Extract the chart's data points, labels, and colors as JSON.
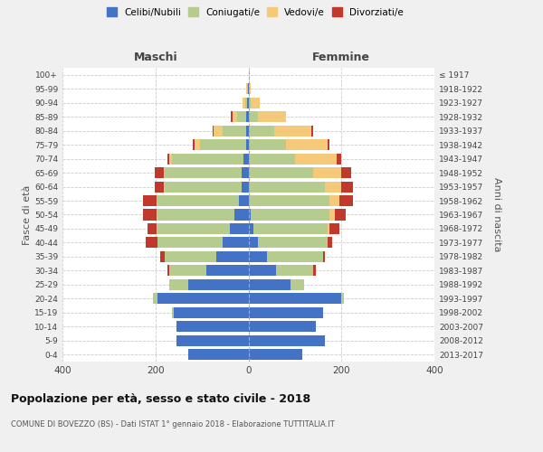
{
  "age_groups": [
    "0-4",
    "5-9",
    "10-14",
    "15-19",
    "20-24",
    "25-29",
    "30-34",
    "35-39",
    "40-44",
    "45-49",
    "50-54",
    "55-59",
    "60-64",
    "65-69",
    "70-74",
    "75-79",
    "80-84",
    "85-89",
    "90-94",
    "95-99",
    "100+"
  ],
  "birth_years": [
    "2013-2017",
    "2008-2012",
    "2003-2007",
    "1998-2002",
    "1993-1997",
    "1988-1992",
    "1983-1987",
    "1978-1982",
    "1973-1977",
    "1968-1972",
    "1963-1967",
    "1958-1962",
    "1953-1957",
    "1948-1952",
    "1943-1947",
    "1938-1942",
    "1933-1937",
    "1928-1932",
    "1923-1927",
    "1918-1922",
    "≤ 1917"
  ],
  "maschi": {
    "celibi": [
      130,
      155,
      155,
      160,
      195,
      130,
      90,
      70,
      55,
      40,
      30,
      20,
      15,
      15,
      10,
      5,
      5,
      5,
      2,
      1,
      0
    ],
    "coniugati": [
      0,
      0,
      0,
      5,
      10,
      40,
      80,
      110,
      140,
      155,
      165,
      175,
      165,
      165,
      155,
      100,
      50,
      20,
      5,
      2,
      0
    ],
    "vedovi": [
      0,
      0,
      0,
      0,
      0,
      0,
      0,
      0,
      0,
      2,
      2,
      2,
      2,
      2,
      5,
      10,
      20,
      10,
      5,
      2,
      0
    ],
    "divorziati": [
      0,
      0,
      0,
      0,
      0,
      0,
      5,
      10,
      25,
      20,
      30,
      30,
      20,
      20,
      5,
      5,
      2,
      2,
      0,
      0,
      0
    ]
  },
  "femmine": {
    "nubili": [
      115,
      165,
      145,
      160,
      200,
      90,
      60,
      40,
      20,
      10,
      5,
      0,
      0,
      0,
      0,
      0,
      0,
      0,
      0,
      0,
      0
    ],
    "coniugate": [
      0,
      0,
      0,
      0,
      5,
      30,
      80,
      120,
      150,
      160,
      170,
      175,
      165,
      140,
      100,
      80,
      55,
      20,
      5,
      0,
      0
    ],
    "vedove": [
      0,
      0,
      0,
      0,
      0,
      0,
      0,
      0,
      0,
      5,
      10,
      20,
      35,
      60,
      90,
      90,
      80,
      60,
      20,
      5,
      0
    ],
    "divorziate": [
      0,
      0,
      0,
      0,
      0,
      0,
      5,
      5,
      10,
      20,
      25,
      30,
      25,
      20,
      10,
      5,
      5,
      0,
      0,
      0,
      0
    ]
  },
  "colors": {
    "celibi_nubili": "#4472c4",
    "coniugati": "#b5cc8e",
    "vedovi": "#f5c97a",
    "divorziati": "#c0392b"
  },
  "title": "Popolazione per età, sesso e stato civile - 2018",
  "subtitle": "COMUNE DI BOVEZZO (BS) - Dati ISTAT 1° gennaio 2018 - Elaborazione TUTTITALIA.IT",
  "xlabel_left": "Maschi",
  "xlabel_right": "Femmine",
  "ylabel_left": "Fasce di età",
  "ylabel_right": "Anni di nascita",
  "xlim": 400,
  "background_color": "#f0f0f0",
  "plot_bg": "#ffffff"
}
